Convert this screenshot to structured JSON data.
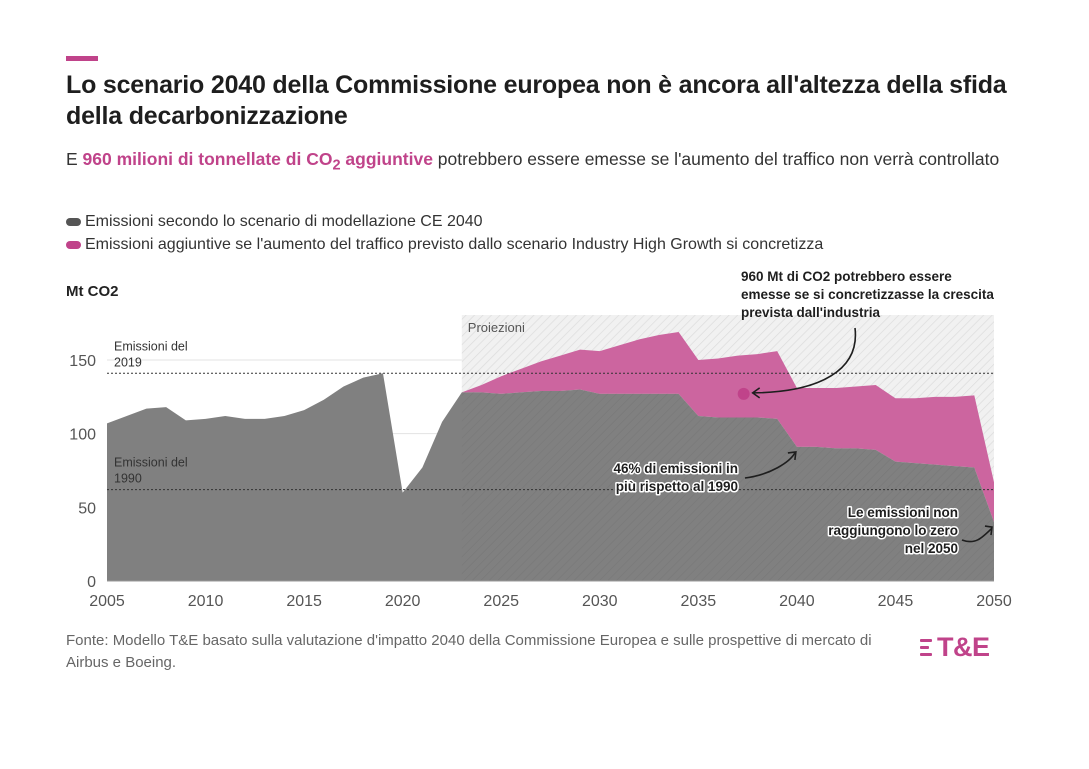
{
  "header": {
    "title": "Lo scenario 2040 della Commissione europea non è ancora all'altezza della sfida della decarbonizzazione",
    "subtitle_prefix": "E ",
    "subtitle_highlight": "960 milioni di tonnellate di CO",
    "subtitle_highlight_sub": "2",
    "subtitle_highlight_suffix": " aggiuntive",
    "subtitle_rest": " potrebbero essere emesse se l'aumento del traffico non verrà controllato"
  },
  "footer": {
    "source": "Fonte: Modello T&E basato sulla valutazione d'impatto 2040 della Commissione Europea e sulle prospettive di mercato di Airbus e Boeing.",
    "logo_text": "T&E"
  },
  "colors": {
    "accent": "#c0438a",
    "base_area": "#808080",
    "additional_area": "#cc659f",
    "projection_shade": "#efefef"
  },
  "chart_data": {
    "type": "area",
    "ylabel": "Mt CO2",
    "xlim": [
      2005,
      2050
    ],
    "ylim": [
      0,
      180
    ],
    "yticks": [
      0,
      50,
      100,
      150
    ],
    "xticks": [
      2005,
      2010,
      2015,
      2020,
      2025,
      2030,
      2035,
      2040,
      2045,
      2050
    ],
    "grid": true,
    "legend_position": "top-left",
    "x": [
      2005,
      2006,
      2007,
      2008,
      2009,
      2010,
      2011,
      2012,
      2013,
      2014,
      2015,
      2016,
      2017,
      2018,
      2019,
      2020,
      2021,
      2022,
      2023,
      2024,
      2025,
      2026,
      2027,
      2028,
      2029,
      2030,
      2031,
      2032,
      2033,
      2034,
      2035,
      2036,
      2037,
      2038,
      2039,
      2040,
      2041,
      2042,
      2043,
      2044,
      2045,
      2046,
      2047,
      2048,
      2049,
      2050
    ],
    "series": [
      {
        "name": "Emissioni secondo lo scenario di modellazione CE 2040",
        "color": "#808080",
        "values": [
          107,
          112,
          117,
          118,
          109,
          110,
          112,
          110,
          110,
          112,
          116,
          123,
          132,
          138,
          141,
          60,
          77,
          108,
          128,
          128,
          127,
          128,
          129,
          129,
          130,
          127,
          127,
          127,
          127,
          127,
          112,
          111,
          111,
          111,
          110,
          91,
          91,
          90,
          90,
          89,
          81,
          80,
          79,
          78,
          77,
          40
        ]
      },
      {
        "name": "Emissioni aggiuntive se l'aumento del traffico previsto dallo scenario Industry High Growth si concretizza",
        "color": "#cc659f",
        "values": [
          null,
          null,
          null,
          null,
          null,
          null,
          null,
          null,
          null,
          null,
          null,
          null,
          null,
          null,
          null,
          null,
          null,
          null,
          128,
          133,
          139,
          144,
          149,
          153,
          157,
          156,
          160,
          164,
          167,
          169,
          150,
          151,
          153,
          154,
          156,
          131,
          131,
          131,
          132,
          133,
          124,
          124,
          125,
          125,
          126,
          67
        ]
      }
    ],
    "reference_lines": [
      {
        "label": "Emissioni del 2019",
        "value": 141
      },
      {
        "label": "Emissioni del 1990",
        "value": 62
      }
    ],
    "projection": {
      "label": "Proiezioni",
      "from": 2023,
      "to": 2050
    },
    "legend": [
      "Emissioni secondo lo scenario di modellazione CE 2040",
      "Emissioni aggiuntive se l'aumento del traffico previsto dallo scenario Industry High Growth si concretizza"
    ],
    "annotations": [
      {
        "text": "960 Mt di CO2 potrebbero essere emesse se si concretizzasse la crescita prevista dall'industria",
        "x": 2037.3,
        "y": 127
      },
      {
        "text": "46% di emissioni in più rispetto al 1990",
        "x": 2040,
        "y": 91
      },
      {
        "text": "Le emissioni non raggiungono lo zero nel 2050",
        "x": 2050,
        "y": 40
      }
    ]
  }
}
